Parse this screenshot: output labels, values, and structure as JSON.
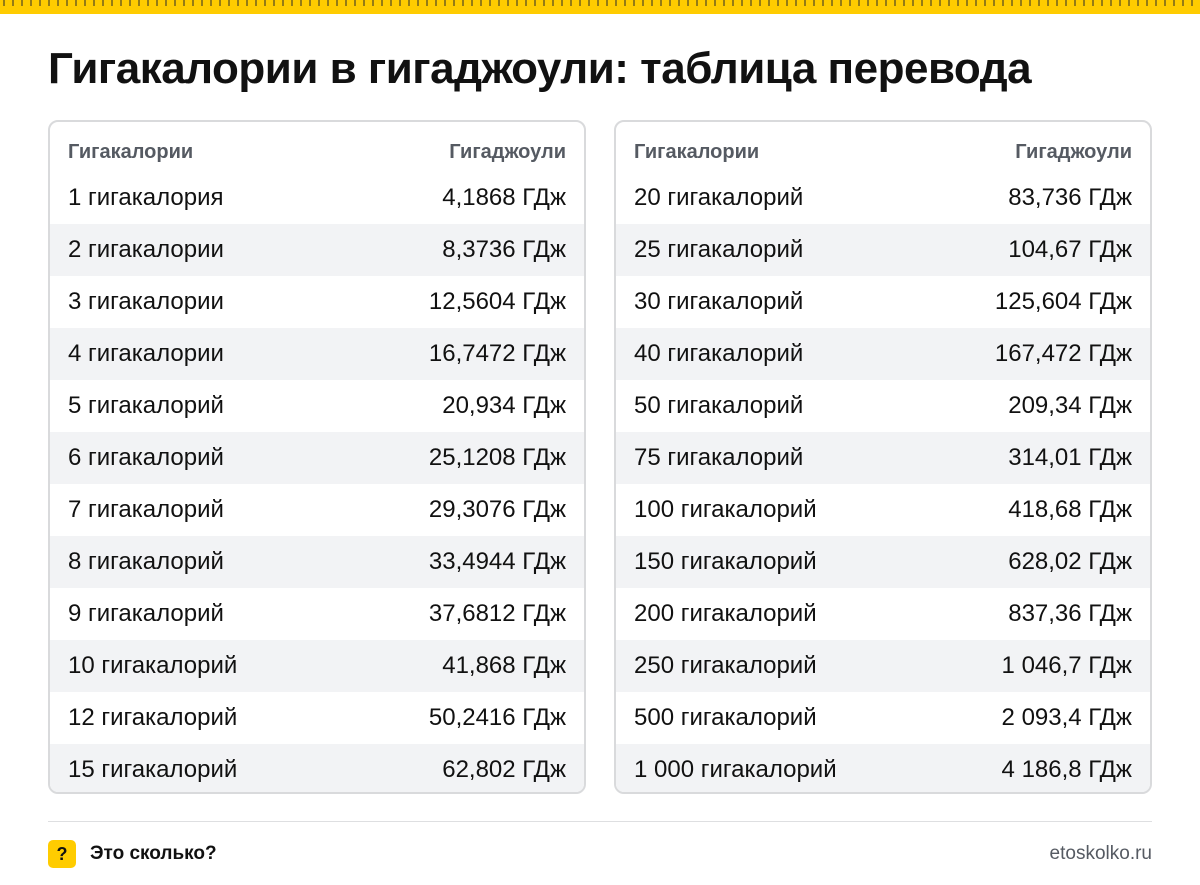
{
  "brand_color": "#ffcc00",
  "title": "Гигакалории в гигаджоули: таблица перевода",
  "table_left": {
    "header": {
      "col1": "Гигакалории",
      "col2": "Гигаджоули"
    },
    "rows": [
      {
        "gcal": "1 гигакалория",
        "gj": "4,1868 ГДж"
      },
      {
        "gcal": "2 гигакалории",
        "gj": "8,3736 ГДж"
      },
      {
        "gcal": "3 гигакалории",
        "gj": "12,5604 ГДж"
      },
      {
        "gcal": "4 гигакалории",
        "gj": "16,7472 ГДж"
      },
      {
        "gcal": "5 гигакалорий",
        "gj": "20,934 ГДж"
      },
      {
        "gcal": "6 гигакалорий",
        "gj": "25,1208 ГДж"
      },
      {
        "gcal": "7 гигакалорий",
        "gj": "29,3076 ГДж"
      },
      {
        "gcal": "8 гигакалорий",
        "gj": "33,4944 ГДж"
      },
      {
        "gcal": "9 гигакалорий",
        "gj": "37,6812 ГДж"
      },
      {
        "gcal": "10 гигакалорий",
        "gj": "41,868 ГДж"
      },
      {
        "gcal": "12 гигакалорий",
        "gj": "50,2416 ГДж"
      },
      {
        "gcal": "15 гигакалорий",
        "gj": "62,802 ГДж"
      }
    ]
  },
  "table_right": {
    "header": {
      "col1": "Гигакалории",
      "col2": "Гигаджоули"
    },
    "rows": [
      {
        "gcal": "20 гигакалорий",
        "gj": "83,736 ГДж"
      },
      {
        "gcal": "25 гигакалорий",
        "gj": "104,67 ГДж"
      },
      {
        "gcal": "30 гигакалорий",
        "gj": "125,604 ГДж"
      },
      {
        "gcal": "40 гигакалорий",
        "gj": "167,472 ГДж"
      },
      {
        "gcal": "50 гигакалорий",
        "gj": "209,34 ГДж"
      },
      {
        "gcal": "75 гигакалорий",
        "gj": "314,01 ГДж"
      },
      {
        "gcal": "100 гигакалорий",
        "gj": "418,68 ГДж"
      },
      {
        "gcal": "150 гигакалорий",
        "gj": "628,02 ГДж"
      },
      {
        "gcal": "200 гигакалорий",
        "gj": "837,36 ГДж"
      },
      {
        "gcal": "250 гигакалорий",
        "gj": "1 046,7 ГДж"
      },
      {
        "gcal": "500 гигакалорий",
        "gj": "2 093,4 ГДж"
      },
      {
        "gcal": "1 000 гигакалорий",
        "gj": "4 186,8 ГДж"
      }
    ]
  },
  "footer": {
    "logo_icon": "question-mark-icon",
    "logo_glyph": "?",
    "brand": "Это сколько?",
    "site": "etoskolko.ru"
  }
}
